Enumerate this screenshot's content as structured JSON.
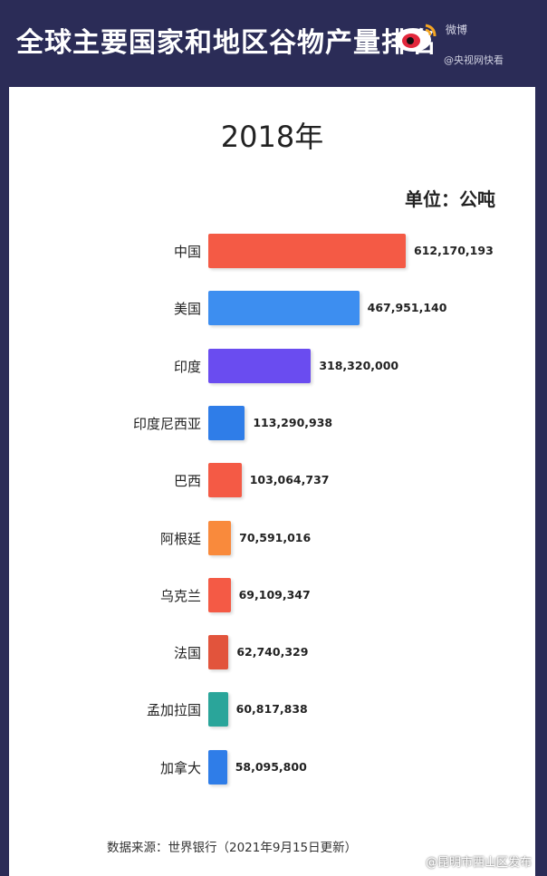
{
  "header": {
    "title": "全球主要国家和地区谷物产量排名",
    "logo_text": "微博",
    "logo_sub": "@央视网快看"
  },
  "colors": {
    "background": "#2b2c57",
    "card": "#ffffff"
  },
  "chart_data": {
    "type": "bar",
    "orientation": "horizontal",
    "title": "2018年",
    "unit_label": "单位：公吨",
    "categories": [
      "中国",
      "美国",
      "印度",
      "印度尼西亚",
      "巴西",
      "阿根廷",
      "乌克兰",
      "法国",
      "孟加拉国",
      "加拿大"
    ],
    "values": [
      612170193,
      467951140,
      318320000,
      113290938,
      103064737,
      70591016,
      69109347,
      62740329,
      60817838,
      58095800
    ],
    "value_labels": [
      "612,170,193",
      "467,951,140",
      "318,320,000",
      "113,290,938",
      "103,064,737",
      "70,591,016",
      "69,109,347",
      "62,740,329",
      "60,817,838",
      "58,095,800"
    ],
    "colors": [
      "#f45a45",
      "#3d8ef0",
      "#6a4cf0",
      "#2f7de8",
      "#f45a45",
      "#f98a3c",
      "#f45a45",
      "#e2543c",
      "#2aa59a",
      "#2f7de8"
    ],
    "grid": false,
    "legend": "none"
  },
  "footer": {
    "source": "数据来源：世界银行（2021年9月15日更新）"
  },
  "watermark": {
    "text": "@昆明市西山区发布"
  }
}
